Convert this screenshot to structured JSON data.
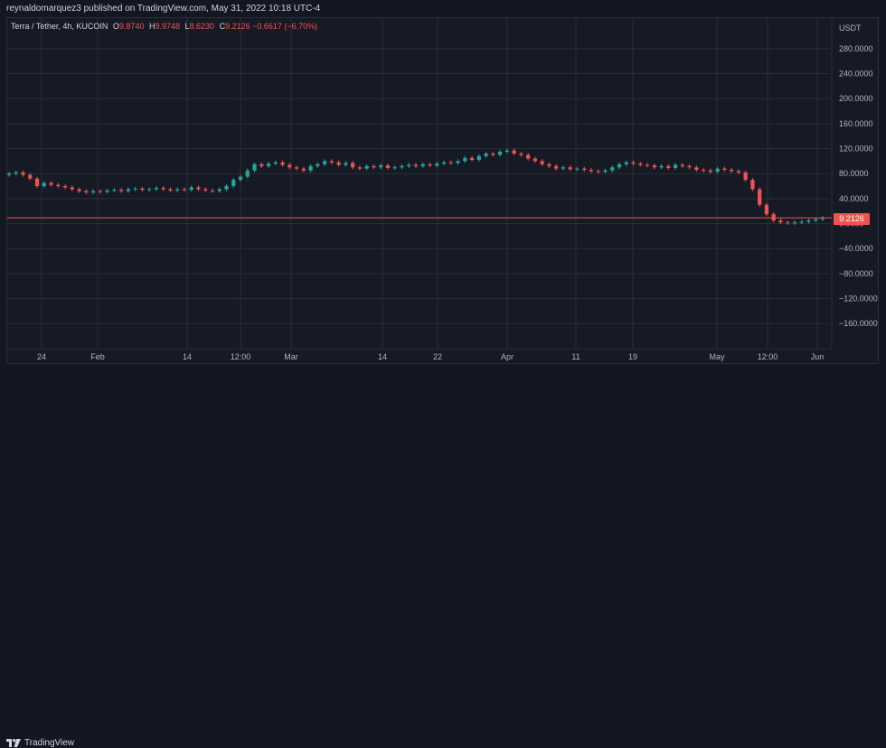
{
  "header": {
    "publish_line": "reynaldomarquez3 published on TradingView.com, May 31, 2022 10:18 UTC-4"
  },
  "legend": {
    "symbol": "Terra / Tether, 4h, KUCOIN",
    "o_label": "O",
    "o_value": "9.8740",
    "h_label": "H",
    "h_value": "9.9748",
    "l_label": "L",
    "l_value": "8.6230",
    "c_label": "C",
    "c_value": "9.2126",
    "change": "−0.6617 (−6.70%)"
  },
  "price_axis": {
    "currency": "USDT",
    "last_price_label": "9.2126"
  },
  "footer": {
    "brand": "TradingView"
  },
  "colors": {
    "up": "#26a69a",
    "down": "#ef5350",
    "grid": "#2a2e39",
    "text": "#b2b5be",
    "background": "#161a25"
  },
  "chart_data": {
    "type": "line",
    "style": "candlestick",
    "title": "Terra / Tether, 4h, KUCOIN",
    "xlabel": "",
    "ylabel": "USDT",
    "ylim": [
      -190,
      310
    ],
    "y_ticks": [
      280,
      240,
      200,
      160,
      120,
      80,
      40,
      0,
      -40,
      -80,
      -120,
      -160
    ],
    "y_tick_labels": [
      "280.0000",
      "240.0000",
      "200.0000",
      "160.0000",
      "120.0000",
      "80.0000",
      "40.0000",
      "0.0000",
      "−40.0000",
      "−80.0000",
      "−120.0000",
      "−160.0000"
    ],
    "x_ticks": [
      "24",
      "Feb",
      "14",
      "12:00",
      "Mar",
      "14",
      "22",
      "Apr",
      "11",
      "19",
      "May",
      "12:00",
      "Jun"
    ],
    "grid": true,
    "last_price": 9.2126,
    "series": [
      {
        "values": [
          80,
          82,
          78,
          72,
          60,
          65,
          62,
          60,
          58,
          55,
          52,
          50,
          52,
          51,
          53,
          54,
          52,
          55,
          56,
          54,
          55,
          57,
          55,
          53,
          55,
          54,
          58,
          55,
          53,
          52,
          55,
          60,
          70,
          75,
          85,
          95,
          92,
          96,
          98,
          94,
          90,
          88,
          85,
          92,
          95,
          100,
          98,
          94,
          97,
          90,
          88,
          92,
          90,
          93,
          89,
          90,
          92,
          94,
          92,
          95,
          93,
          96,
          98,
          97,
          100,
          105,
          102,
          108,
          112,
          110,
          115,
          117,
          112,
          110,
          104,
          100,
          95,
          92,
          88,
          90,
          87,
          88,
          86,
          84,
          83,
          85,
          90,
          95,
          98,
          96,
          94,
          93,
          90,
          92,
          89,
          94,
          92,
          90,
          86,
          85,
          83,
          88,
          86,
          84,
          82,
          70,
          55,
          30,
          15,
          5,
          2,
          1,
          2,
          3,
          5,
          7,
          9.2
        ]
      }
    ]
  }
}
